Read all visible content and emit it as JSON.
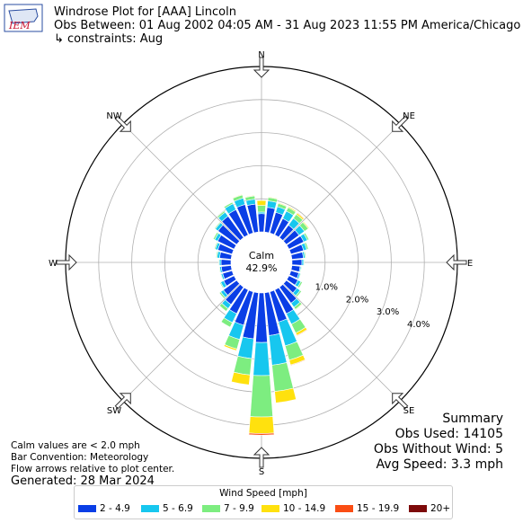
{
  "header": {
    "title": "Windrose Plot for [AAA] Lincoln",
    "obs_between": "Obs Between: 01 Aug 2002 04:05 AM - 31 Aug 2023 11:55 PM America/Chicago",
    "constraints": "↳ constraints: Aug",
    "logo_text": "IEM"
  },
  "notes": {
    "calm_def": "Calm values are < 2.0 mph",
    "convention": "Bar Convention: Meteorology",
    "arrows": "Flow arrows relative to plot center.",
    "generated": "Generated: 28 Mar 2024"
  },
  "summary": {
    "title": "Summary",
    "obs_used": "Obs Used: 14105",
    "obs_without_wind": "Obs Without Wind: 5",
    "avg_speed": "Avg Speed: 3.3 mph"
  },
  "colors": {
    "bins": [
      "#0a3ee6",
      "#17c7ef",
      "#7ded80",
      "#ffe10e",
      "#fa4d14",
      "#7d0a0a"
    ],
    "grid": "#b0b0b0"
  },
  "chart_data": {
    "type": "windrose",
    "calm": {
      "label": "Calm",
      "value": "42.9%"
    },
    "directions": [
      "N",
      "NNE",
      "NE",
      "ENE",
      "E",
      "ESE",
      "SE",
      "SSE",
      "S",
      "SSW",
      "SW",
      "WSW",
      "W",
      "WNW",
      "NW",
      "NNW"
    ],
    "compass_labels": [
      "N",
      "NE",
      "E",
      "SE",
      "S",
      "SW",
      "W",
      "NW"
    ],
    "ring_labels": [
      "1.0%",
      "2.0%",
      "3.0%",
      "4.0%"
    ],
    "ring_values": [
      1,
      2,
      3,
      4
    ],
    "rmax": 5,
    "legend_title": "Wind Speed [mph]",
    "bins": [
      "2 - 4.9",
      "5 - 6.9",
      "7 - 9.9",
      "10 - 14.9",
      "15 - 19.9",
      "20+"
    ],
    "sectors": [
      {
        "dir": 0,
        "values": [
          0.55,
          0.05,
          0.2,
          0.15,
          0,
          0
        ]
      },
      {
        "dir": 10,
        "values": [
          0.75,
          0.2,
          0.1,
          0.02,
          0,
          0
        ]
      },
      {
        "dir": 20,
        "values": [
          0.65,
          0.18,
          0.1,
          0.02,
          0,
          0
        ]
      },
      {
        "dir": 30,
        "values": [
          0.55,
          0.25,
          0.12,
          0.03,
          0,
          0
        ]
      },
      {
        "dir": 40,
        "values": [
          0.47,
          0.25,
          0.15,
          0.05,
          0.02,
          0
        ]
      },
      {
        "dir": 50,
        "values": [
          0.48,
          0.2,
          0.14,
          0.03,
          0,
          0
        ]
      },
      {
        "dir": 60,
        "values": [
          0.5,
          0.12,
          0.05,
          0,
          0,
          0
        ]
      },
      {
        "dir": 70,
        "values": [
          0.4,
          0.1,
          0.05,
          0,
          0,
          0
        ]
      },
      {
        "dir": 80,
        "values": [
          0.35,
          0.05,
          0.03,
          0,
          0,
          0
        ]
      },
      {
        "dir": 90,
        "values": [
          0.3,
          0.05,
          0.02,
          0,
          0,
          0
        ]
      },
      {
        "dir": 100,
        "values": [
          0.25,
          0.03,
          0.02,
          0,
          0,
          0
        ]
      },
      {
        "dir": 110,
        "values": [
          0.25,
          0.05,
          0.02,
          0,
          0,
          0
        ]
      },
      {
        "dir": 120,
        "values": [
          0.3,
          0.1,
          0.05,
          0,
          0,
          0
        ]
      },
      {
        "dir": 130,
        "values": [
          0.4,
          0.12,
          0.05,
          0,
          0,
          0
        ]
      },
      {
        "dir": 140,
        "values": [
          0.6,
          0.15,
          0.08,
          0.02,
          0,
          0
        ]
      },
      {
        "dir": 150,
        "values": [
          0.8,
          0.35,
          0.3,
          0.08,
          0.02,
          0
        ]
      },
      {
        "dir": 160,
        "values": [
          0.95,
          0.75,
          0.45,
          0.15,
          0.02,
          0
        ]
      },
      {
        "dir": 170,
        "values": [
          1.3,
          0.9,
          0.8,
          0.35,
          0,
          0
        ]
      },
      {
        "dir": 180,
        "values": [
          1.5,
          1.0,
          1.25,
          0.5,
          0.05,
          0
        ]
      },
      {
        "dir": 190,
        "values": [
          1.4,
          0.6,
          0.5,
          0.3,
          0,
          0
        ]
      },
      {
        "dir": 200,
        "values": [
          1.05,
          0.45,
          0.3,
          0.05,
          0,
          0
        ]
      },
      {
        "dir": 210,
        "values": [
          0.8,
          0.3,
          0.15,
          0,
          0,
          0
        ]
      },
      {
        "dir": 220,
        "values": [
          0.65,
          0.15,
          0.1,
          0,
          0,
          0
        ]
      },
      {
        "dir": 230,
        "values": [
          0.5,
          0.1,
          0.05,
          0,
          0,
          0
        ]
      },
      {
        "dir": 240,
        "values": [
          0.35,
          0.1,
          0.03,
          0,
          0,
          0
        ]
      },
      {
        "dir": 250,
        "values": [
          0.3,
          0.05,
          0.02,
          0,
          0,
          0
        ]
      },
      {
        "dir": 260,
        "values": [
          0.3,
          0.05,
          0.02,
          0,
          0,
          0
        ]
      },
      {
        "dir": 270,
        "values": [
          0.3,
          0.05,
          0.02,
          0,
          0,
          0
        ]
      },
      {
        "dir": 280,
        "values": [
          0.35,
          0.08,
          0.03,
          0,
          0,
          0
        ]
      },
      {
        "dir": 290,
        "values": [
          0.45,
          0.08,
          0.03,
          0,
          0,
          0
        ]
      },
      {
        "dir": 300,
        "values": [
          0.55,
          0.1,
          0.05,
          0,
          0,
          0
        ]
      },
      {
        "dir": 310,
        "values": [
          0.7,
          0.1,
          0.03,
          0,
          0,
          0
        ]
      },
      {
        "dir": 320,
        "values": [
          0.8,
          0.15,
          0.05,
          0,
          0,
          0
        ]
      },
      {
        "dir": 330,
        "values": [
          0.85,
          0.2,
          0.05,
          0,
          0,
          0
        ]
      },
      {
        "dir": 340,
        "values": [
          0.9,
          0.2,
          0.1,
          0.02,
          0,
          0
        ]
      },
      {
        "dir": 350,
        "values": [
          0.85,
          0.15,
          0.1,
          0.02,
          0,
          0
        ]
      }
    ]
  }
}
